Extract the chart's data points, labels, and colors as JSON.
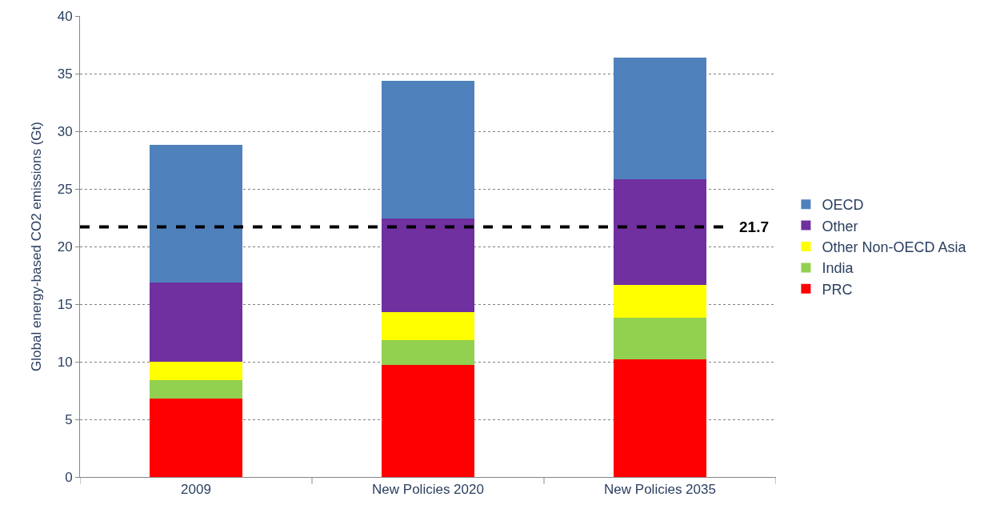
{
  "chart_data": {
    "type": "bar",
    "stacked": true,
    "ylabel": "Global energy-based CO2 emissions (Gt)",
    "categories": [
      "2009",
      "New Policies 2020",
      "New Policies 2035"
    ],
    "series": [
      {
        "name": "PRC",
        "color": "#ff0000",
        "values": [
          6.8,
          9.7,
          10.2
        ]
      },
      {
        "name": "India",
        "color": "#92d050",
        "values": [
          1.6,
          2.2,
          3.6
        ]
      },
      {
        "name": "Other Non-OECD Asia",
        "color": "#ffff00",
        "values": [
          1.6,
          2.4,
          2.9
        ]
      },
      {
        "name": "Other",
        "color": "#7030a0",
        "values": [
          6.9,
          8.1,
          9.1
        ]
      },
      {
        "name": "OECD",
        "color": "#4f81bd",
        "values": [
          11.9,
          12.0,
          10.6
        ]
      }
    ],
    "ylim": [
      0,
      40
    ],
    "yticks": [
      0,
      5,
      10,
      15,
      20,
      25,
      30,
      35,
      40
    ],
    "grid": "y",
    "legend": "right",
    "ref_lines": [
      {
        "axis": "y",
        "value": 21.7,
        "label": "21.7",
        "color": "#000000",
        "line_style": "dashed"
      }
    ]
  }
}
